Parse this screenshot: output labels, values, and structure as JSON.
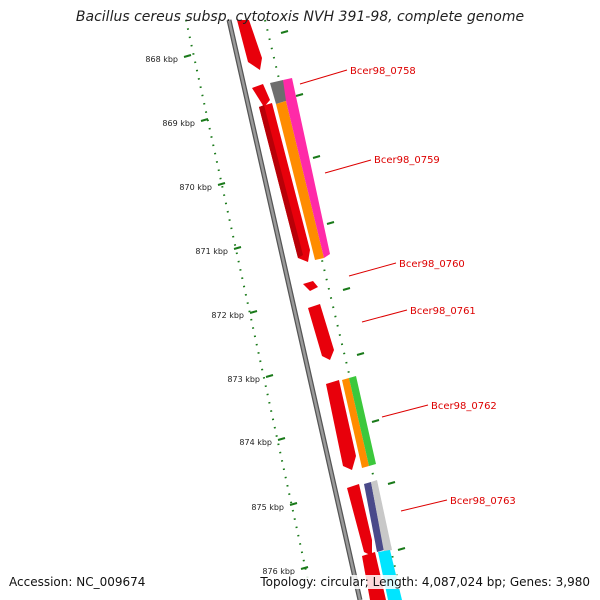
{
  "title": "Bacillus cereus subsp. cytotoxis NVH 391-98, complete genome",
  "accession": "Accession: NC_009674",
  "summary": "Topology: circular; Length: 4,087,024 bp; Genes: 3,980",
  "colors": {
    "backbone": "#8a8a8a",
    "tick": "#1a7a1a",
    "gene_label": "#dd0000"
  },
  "kbp_ticks": [
    {
      "label": "868 kbp"
    },
    {
      "label": "869 kbp"
    },
    {
      "label": "870 kbp"
    },
    {
      "label": "871 kbp"
    },
    {
      "label": "872 kbp"
    },
    {
      "label": "873 kbp"
    },
    {
      "label": "874 kbp"
    },
    {
      "label": "875 kbp"
    },
    {
      "label": "876 kbp"
    }
  ],
  "gene_labels": [
    {
      "label": "Bcer98_0758"
    },
    {
      "label": "Bcer98_0759"
    },
    {
      "label": "Bcer98_0760"
    },
    {
      "label": "Bcer98_0761"
    },
    {
      "label": "Bcer98_0762"
    },
    {
      "label": "Bcer98_0763"
    }
  ],
  "track_colors": {
    "cds": "#e8000b",
    "track_grey": "#6e6e6e",
    "track_orange": "#ff8c00",
    "track_magenta": "#ff2aa8",
    "track_green": "#3cc83c",
    "track_navy": "#4a4a8a",
    "track_lightgrey": "#c8c8c8",
    "track_cyan": "#00e5ff"
  }
}
